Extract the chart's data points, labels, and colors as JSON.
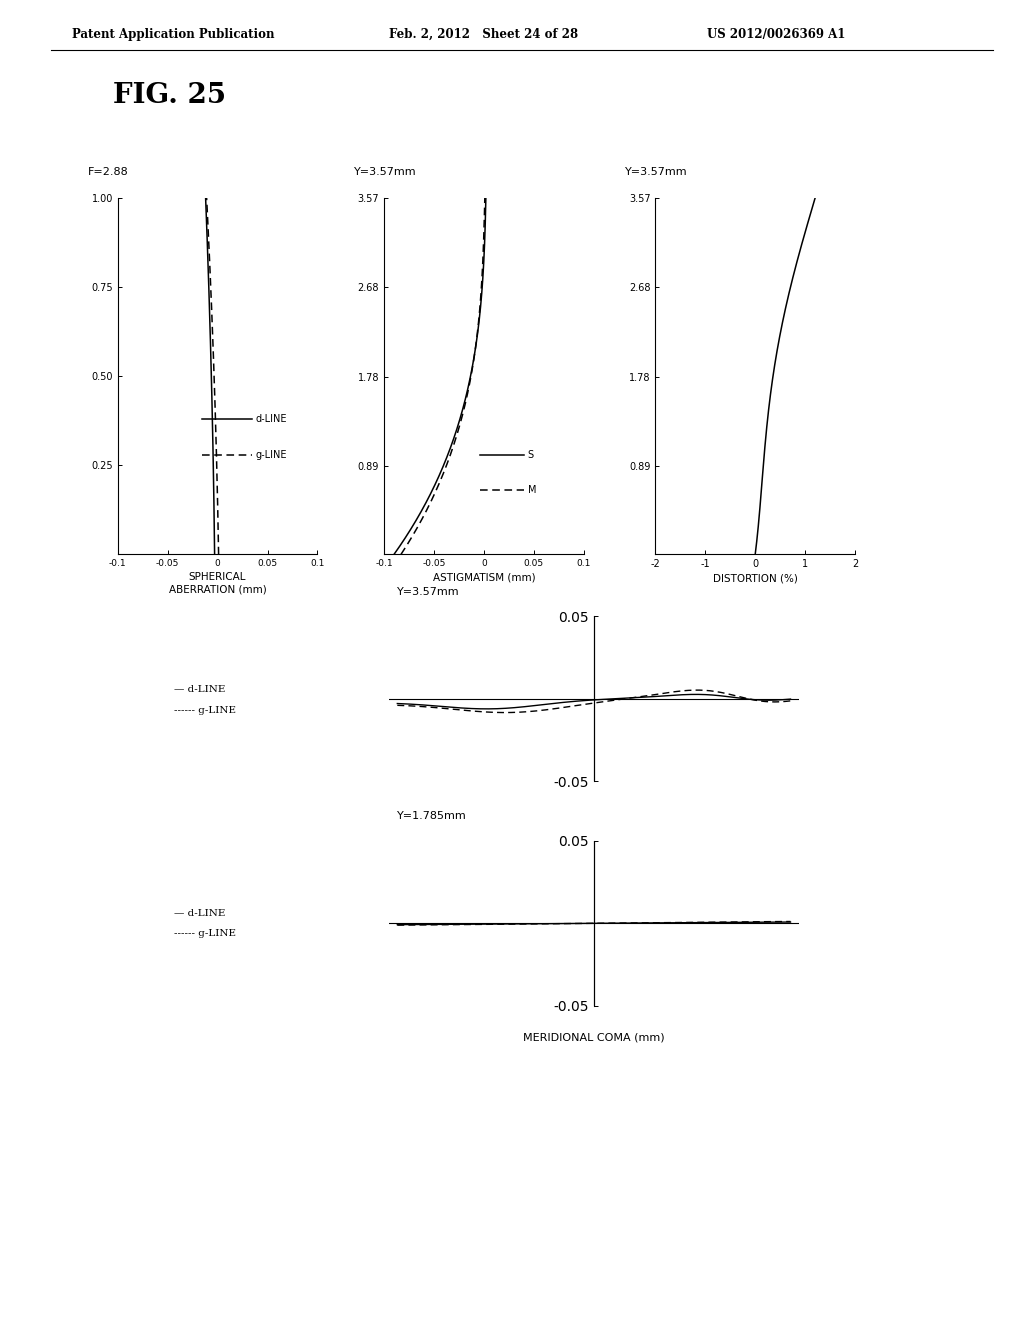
{
  "header_left": "Patent Application Publication",
  "header_mid": "Feb. 2, 2012   Sheet 24 of 28",
  "header_right": "US 2012/0026369 A1",
  "fig_label": "FIG. 25",
  "plot1_label": "F=2.88",
  "plot1_xlabel": "SPHERICAL\nABERRATION (mm)",
  "plot1_xlim": [
    -0.1,
    0.1
  ],
  "plot1_ylim": [
    0,
    1.0
  ],
  "plot1_yticks": [
    0.25,
    0.5,
    0.75,
    1.0
  ],
  "plot1_xticks": [
    -0.1,
    -0.05,
    0,
    0.05,
    0.1
  ],
  "plot2_label": "Y=3.57mm",
  "plot2_xlabel": "ASTIGMATISM (mm)",
  "plot2_xlim": [
    -0.1,
    0.1
  ],
  "plot2_ylim": [
    0,
    3.57
  ],
  "plot2_yticks": [
    0.89,
    1.78,
    2.68,
    3.57
  ],
  "plot2_xticks": [
    -0.1,
    -0.05,
    0,
    0.05,
    0.1
  ],
  "plot3_label": "Y=3.57mm",
  "plot3_xlabel": "DISTORTION (%)",
  "plot3_xlim": [
    -2,
    2
  ],
  "plot3_ylim": [
    0,
    3.57
  ],
  "plot3_yticks": [
    0.89,
    1.78,
    2.68,
    3.57
  ],
  "plot3_xticks": [
    -2,
    -1,
    0,
    1,
    2
  ],
  "plot4_label": "Y=3.57mm",
  "plot4_ylim": [
    -0.05,
    0.05
  ],
  "plot5_label": "Y=1.785mm",
  "plot5_ylim": [
    -0.05,
    0.05
  ],
  "coma_xlabel": "MERIDIONAL COMA (mm)"
}
